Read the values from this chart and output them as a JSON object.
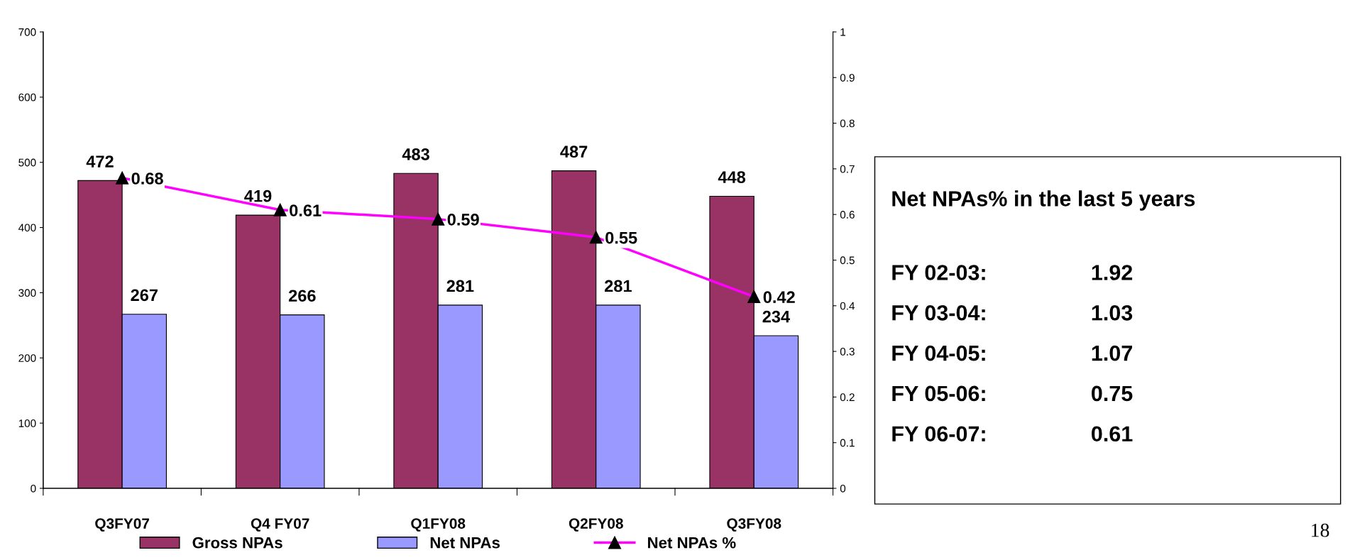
{
  "chart_data": {
    "type": "bar",
    "categories": [
      "Q3FY07",
      "Q4 FY07",
      "Q1FY08",
      "Q2FY08",
      "Q3FY08"
    ],
    "series": [
      {
        "name": "Gross NPAs",
        "color": "#993366",
        "values": [
          472,
          419,
          483,
          487,
          448
        ]
      },
      {
        "name": "Net NPAs",
        "color": "#9999ff",
        "values": [
          267,
          266,
          281,
          281,
          234
        ]
      },
      {
        "name": "Net NPAs %",
        "type": "line",
        "axis": "y2",
        "color": "#ff00ff",
        "marker": "triangle",
        "values": [
          0.68,
          0.61,
          0.59,
          0.55,
          0.42
        ]
      }
    ],
    "ylim": [
      0,
      700
    ],
    "yticks": [
      0,
      100,
      200,
      300,
      400,
      500,
      600,
      700
    ],
    "y2lim": [
      0,
      1
    ],
    "y2ticks": [
      0,
      0.1,
      0.2,
      0.3,
      0.4,
      0.5,
      0.6,
      0.7,
      0.8,
      0.9,
      1
    ],
    "data_labels": true,
    "grid": false,
    "legend": "bottom",
    "annotations": [
      "Net NPAs% in the last 5 years",
      "FY 02-03:",
      "1.92",
      "FY 03-04:",
      "1.03",
      "FY 04-05:",
      "1.07",
      "FY 05-06:",
      "0.75",
      "FY 06-07:",
      "0.61",
      "18"
    ]
  }
}
